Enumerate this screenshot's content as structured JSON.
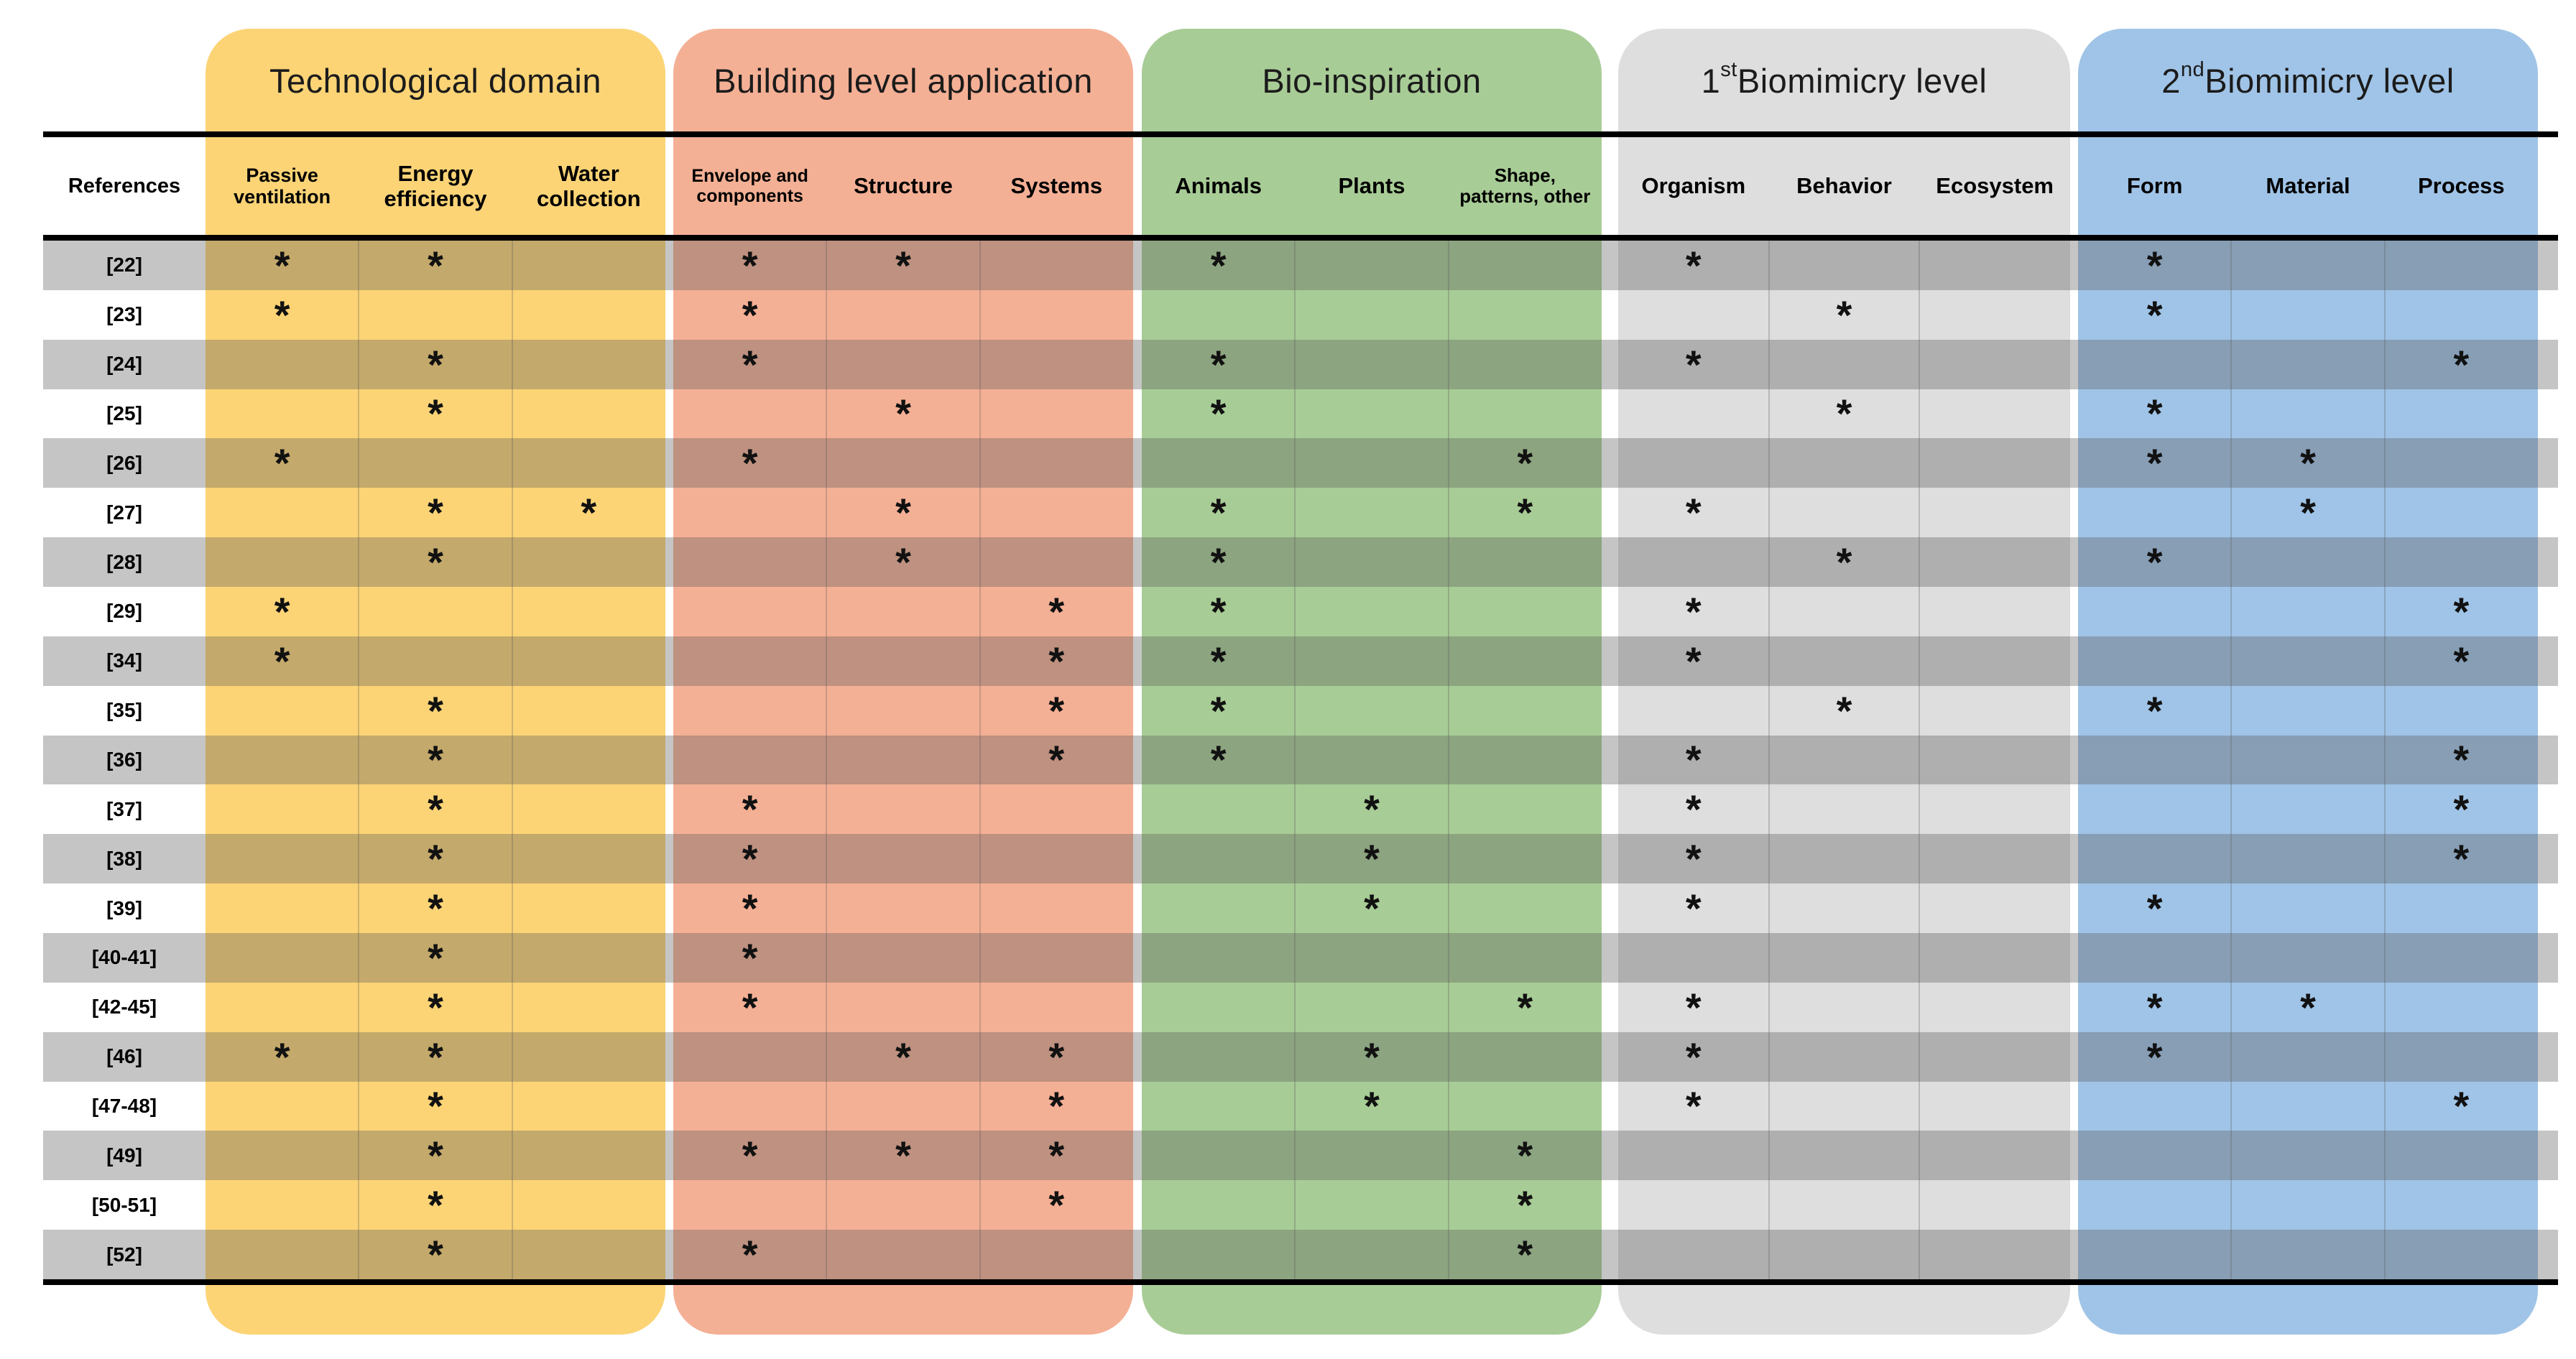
{
  "page": {
    "background": "#FFFFFF"
  },
  "table": {
    "mark_glyph": "*",
    "references_header": "References",
    "groups": [
      {
        "title": {
          "pre": "Technological domain",
          "sup": "",
          "post": ""
        },
        "color": "#FCD476",
        "columns": [
          "Passive ventilation",
          "Energy efficiency",
          "Water collection"
        ]
      },
      {
        "title": {
          "pre": "Building level application",
          "sup": "",
          "post": ""
        },
        "color": "#F4B095",
        "columns": [
          "Envelope and components",
          "Structure",
          "Systems"
        ]
      },
      {
        "title": {
          "pre": "Bio-inspiration",
          "sup": "",
          "post": ""
        },
        "color": "#A8CC96",
        "columns": [
          "Animals",
          "Plants",
          "Shape, patterns, other"
        ]
      },
      {
        "title": {
          "pre": "1",
          "sup": "st",
          "post": " Biomimicry level"
        },
        "color": "#DEDEDE",
        "columns": [
          "Organism",
          "Behavior",
          "Ecosystem"
        ]
      },
      {
        "title": {
          "pre": "2",
          "sup": "nd",
          "post": " Biomimicry level"
        },
        "color": "#A0C4E7",
        "columns": [
          "Form",
          "Material",
          "Process"
        ]
      }
    ],
    "rows": [
      {
        "ref": "[22]",
        "marks": [
          1,
          1,
          0,
          1,
          1,
          0,
          1,
          0,
          0,
          1,
          0,
          0,
          1,
          0,
          0
        ]
      },
      {
        "ref": "[23]",
        "marks": [
          1,
          0,
          0,
          1,
          0,
          0,
          0,
          0,
          0,
          0,
          1,
          0,
          1,
          0,
          0
        ]
      },
      {
        "ref": "[24]",
        "marks": [
          0,
          1,
          0,
          1,
          0,
          0,
          1,
          0,
          0,
          1,
          0,
          0,
          0,
          0,
          1
        ]
      },
      {
        "ref": "[25]",
        "marks": [
          0,
          1,
          0,
          0,
          1,
          0,
          1,
          0,
          0,
          0,
          1,
          0,
          1,
          0,
          0
        ]
      },
      {
        "ref": "[26]",
        "marks": [
          1,
          0,
          0,
          1,
          0,
          0,
          0,
          0,
          1,
          0,
          0,
          0,
          1,
          1,
          0
        ]
      },
      {
        "ref": "[27]",
        "marks": [
          0,
          1,
          1,
          0,
          1,
          0,
          1,
          0,
          1,
          1,
          0,
          0,
          0,
          1,
          0
        ]
      },
      {
        "ref": "[28]",
        "marks": [
          0,
          1,
          0,
          0,
          1,
          0,
          1,
          0,
          0,
          0,
          1,
          0,
          1,
          0,
          0
        ]
      },
      {
        "ref": "[29]",
        "marks": [
          1,
          0,
          0,
          0,
          0,
          1,
          1,
          0,
          0,
          1,
          0,
          0,
          0,
          0,
          1
        ]
      },
      {
        "ref": "[34]",
        "marks": [
          1,
          0,
          0,
          0,
          0,
          1,
          1,
          0,
          0,
          1,
          0,
          0,
          0,
          0,
          1
        ]
      },
      {
        "ref": "[35]",
        "marks": [
          0,
          1,
          0,
          0,
          0,
          1,
          1,
          0,
          0,
          0,
          1,
          0,
          1,
          0,
          0
        ]
      },
      {
        "ref": "[36]",
        "marks": [
          0,
          1,
          0,
          0,
          0,
          1,
          1,
          0,
          0,
          1,
          0,
          0,
          0,
          0,
          1
        ]
      },
      {
        "ref": "[37]",
        "marks": [
          0,
          1,
          0,
          1,
          0,
          0,
          0,
          1,
          0,
          1,
          0,
          0,
          0,
          0,
          1
        ]
      },
      {
        "ref": "[38]",
        "marks": [
          0,
          1,
          0,
          1,
          0,
          0,
          0,
          1,
          0,
          1,
          0,
          0,
          0,
          0,
          1
        ]
      },
      {
        "ref": "[39]",
        "marks": [
          0,
          1,
          0,
          1,
          0,
          0,
          0,
          1,
          0,
          1,
          0,
          0,
          1,
          0,
          0
        ]
      },
      {
        "ref": "[40-41]",
        "marks": [
          0,
          1,
          0,
          1,
          0,
          0,
          0,
          0,
          0,
          0,
          0,
          0,
          0,
          0,
          0
        ]
      },
      {
        "ref": "[42-45]",
        "marks": [
          0,
          1,
          0,
          1,
          0,
          0,
          0,
          0,
          1,
          1,
          0,
          0,
          1,
          1,
          0
        ]
      },
      {
        "ref": "[46]",
        "marks": [
          1,
          1,
          0,
          0,
          1,
          1,
          0,
          1,
          0,
          1,
          0,
          0,
          1,
          0,
          0
        ]
      },
      {
        "ref": "[47-48]",
        "marks": [
          0,
          1,
          0,
          0,
          0,
          1,
          0,
          1,
          0,
          1,
          0,
          0,
          0,
          0,
          1
        ]
      },
      {
        "ref": "[49]",
        "marks": [
          0,
          1,
          0,
          1,
          1,
          1,
          0,
          0,
          1,
          0,
          0,
          0,
          0,
          0,
          0
        ]
      },
      {
        "ref": "[50-51]",
        "marks": [
          0,
          1,
          0,
          0,
          0,
          1,
          0,
          0,
          1,
          0,
          0,
          0,
          0,
          0,
          0
        ]
      },
      {
        "ref": "[52]",
        "marks": [
          0,
          1,
          0,
          1,
          0,
          0,
          0,
          0,
          1,
          0,
          0,
          0,
          0,
          0,
          0
        ]
      }
    ]
  }
}
